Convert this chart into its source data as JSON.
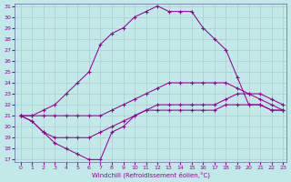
{
  "xlabel": "Windchill (Refroidissement éolien,°C)",
  "bg_color": "#c2e8e8",
  "grid_color": "#aacccc",
  "line_color": "#990099",
  "xlim": [
    0,
    23
  ],
  "ylim": [
    17,
    31
  ],
  "xticks": [
    0,
    1,
    2,
    3,
    4,
    5,
    6,
    7,
    8,
    9,
    10,
    11,
    12,
    13,
    14,
    15,
    16,
    17,
    18,
    19,
    20,
    21,
    22,
    23
  ],
  "yticks": [
    17,
    18,
    19,
    20,
    21,
    22,
    23,
    24,
    25,
    26,
    27,
    28,
    29,
    30,
    31
  ],
  "lines": [
    {
      "x": [
        0,
        1,
        2,
        3,
        4,
        5,
        6,
        7,
        8,
        9,
        10,
        11,
        12,
        13,
        14,
        15,
        16,
        17,
        18,
        19,
        20,
        21,
        22,
        23
      ],
      "y": [
        21,
        21,
        21.5,
        22,
        23,
        24,
        25,
        27.5,
        28.5,
        29,
        30,
        30.5,
        31,
        30.5,
        30.5,
        30.5,
        29,
        28,
        27,
        24.5,
        22,
        22,
        21.5,
        21.5
      ]
    },
    {
      "x": [
        0,
        1,
        2,
        3,
        4,
        5,
        6,
        7,
        8,
        9,
        10,
        11,
        12,
        13,
        14,
        15,
        16,
        17,
        18,
        19,
        20,
        21,
        22,
        23
      ],
      "y": [
        21,
        21,
        21,
        21,
        21,
        21,
        21,
        21,
        21.5,
        22,
        22.5,
        23,
        23.5,
        24,
        24,
        24,
        24,
        24,
        24,
        23.5,
        23,
        23,
        22.5,
        22
      ]
    },
    {
      "x": [
        0,
        1,
        2,
        3,
        4,
        5,
        6,
        7,
        8,
        9,
        10,
        11,
        12,
        13,
        14,
        15,
        16,
        17,
        18,
        19,
        20,
        21,
        22,
        23
      ],
      "y": [
        21,
        20.5,
        19.5,
        18.5,
        18,
        17.5,
        17,
        17,
        19.5,
        20,
        21,
        21.5,
        22,
        22,
        22,
        22,
        22,
        22,
        22.5,
        23,
        23,
        22.5,
        22,
        21.5
      ]
    },
    {
      "x": [
        0,
        1,
        2,
        3,
        4,
        5,
        6,
        7,
        8,
        9,
        10,
        11,
        12,
        13,
        14,
        15,
        16,
        17,
        18,
        19,
        20,
        21,
        22,
        23
      ],
      "y": [
        21,
        20.5,
        19.5,
        19,
        19,
        19,
        19,
        19.5,
        20,
        20.5,
        21,
        21.5,
        21.5,
        21.5,
        21.5,
        21.5,
        21.5,
        21.5,
        22,
        22,
        22,
        22,
        21.5,
        21.5
      ]
    }
  ]
}
